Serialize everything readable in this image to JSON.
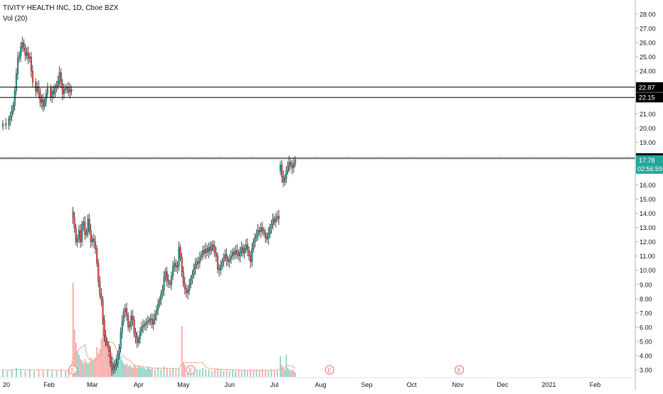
{
  "legend": {
    "title": "TIVITY HEALTH INC, 1D, Cboe BZX",
    "volume_label": "Vol (20)"
  },
  "colors": {
    "up": "#26a69a",
    "down": "#ef5350",
    "vol_up": "#8fd3c6",
    "vol_down": "#f7a9a7",
    "vol_ma": "#f4a98b",
    "level_line": "#000000",
    "last_price_line": "#26a69a",
    "earnings": "#e57373",
    "axis_text": "#131722",
    "grid": "#f0f3fa"
  },
  "chart_data": {
    "type": "candlestick",
    "symbol": "TIVITY HEALTH INC",
    "interval": "1D",
    "exchange": "Cboe BZX",
    "y_range": [
      2.5,
      29.0
    ],
    "y_ticks": [
      "3.00",
      "4.00",
      "5.00",
      "6.00",
      "7.00",
      "8.00",
      "9.00",
      "10.00",
      "11.00",
      "12.00",
      "13.00",
      "14.00",
      "15.00",
      "16.00",
      "17.00",
      "18.00",
      "19.00",
      "20.00",
      "21.00",
      "22.00",
      "23.00",
      "24.00",
      "25.00",
      "26.00",
      "27.00",
      "28.00"
    ],
    "x_ticks": [
      {
        "label": "20",
        "day": 0
      },
      {
        "label": "Feb",
        "day": 31
      },
      {
        "label": "Mar",
        "day": 60
      },
      {
        "label": "Apr",
        "day": 91
      },
      {
        "label": "May",
        "day": 121
      },
      {
        "label": "Jun",
        "day": 152
      },
      {
        "label": "Jul",
        "day": 182
      },
      {
        "label": "Aug",
        "day": 213
      },
      {
        "label": "Sep",
        "day": 244
      },
      {
        "label": "Oct",
        "day": 274
      },
      {
        "label": "Nov",
        "day": 305
      },
      {
        "label": "Dec",
        "day": 335
      },
      {
        "label": "2021",
        "day": 366
      },
      {
        "label": "Feb",
        "day": 397
      }
    ],
    "horizontal_levels": [
      {
        "label": "22.87",
        "value": 22.87
      },
      {
        "label": "22.15",
        "value": 22.15
      },
      {
        "label": "17.88",
        "value": 17.88
      }
    ],
    "last_price": {
      "label": "17.78",
      "value": 17.78,
      "countdown": "02:56:59"
    },
    "earnings_markers": [
      {
        "label": "E",
        "day": 47
      },
      {
        "label": "E",
        "day": 126
      },
      {
        "label": "E",
        "day": 219
      },
      {
        "label": "E",
        "day": 306
      }
    ],
    "anchor_points": [
      [
        0,
        20.3
      ],
      [
        2,
        20.2
      ],
      [
        4,
        20.6
      ],
      [
        5,
        20.8
      ],
      [
        6,
        21.2
      ],
      [
        7,
        21.6
      ],
      [
        8,
        22.6
      ],
      [
        9,
        23.8
      ],
      [
        10,
        24.9
      ],
      [
        11,
        25.1
      ],
      [
        12,
        25.7
      ],
      [
        13,
        26.0
      ],
      [
        14,
        25.6
      ],
      [
        15,
        25.1
      ],
      [
        16,
        25.3
      ],
      [
        17,
        24.9
      ],
      [
        18,
        25.0
      ],
      [
        19,
        24.0
      ],
      [
        20,
        23.2
      ],
      [
        22,
        22.6
      ],
      [
        23,
        22.9
      ],
      [
        24,
        22.5
      ],
      [
        25,
        21.8
      ],
      [
        26,
        22.0
      ],
      [
        27,
        21.5
      ],
      [
        28,
        21.9
      ],
      [
        29,
        22.4
      ],
      [
        30,
        22.8
      ],
      [
        32,
        22.2
      ],
      [
        33,
        22.6
      ],
      [
        34,
        22.4
      ],
      [
        35,
        22.9
      ],
      [
        36,
        23.0
      ],
      [
        37,
        23.3
      ],
      [
        38,
        23.9
      ],
      [
        39,
        23.1
      ],
      [
        40,
        22.4
      ],
      [
        41,
        22.7
      ],
      [
        42,
        22.8
      ],
      [
        43,
        22.85
      ],
      [
        44,
        22.5
      ],
      [
        45,
        22.7
      ],
      [
        46,
        22.6
      ],
      [
        47,
        13.7
      ],
      [
        48,
        13.0
      ],
      [
        49,
        12.0
      ],
      [
        50,
        12.2
      ],
      [
        51,
        12.8
      ],
      [
        52,
        12.0
      ],
      [
        53,
        13.2
      ],
      [
        54,
        13.4
      ],
      [
        55,
        12.5
      ],
      [
        56,
        12.7
      ],
      [
        57,
        13.6
      ],
      [
        58,
        12.8
      ],
      [
        59,
        12.0
      ],
      [
        60,
        12.2
      ],
      [
        61,
        12.0
      ],
      [
        62,
        11.5
      ],
      [
        63,
        10.5
      ],
      [
        64,
        9.2
      ],
      [
        65,
        8.3
      ],
      [
        66,
        7.9
      ],
      [
        67,
        6.5
      ],
      [
        68,
        5.4
      ],
      [
        69,
        5.0
      ],
      [
        70,
        4.7
      ],
      [
        71,
        4.3
      ],
      [
        72,
        3.5
      ],
      [
        73,
        3.0
      ],
      [
        74,
        3.2
      ],
      [
        75,
        3.3
      ],
      [
        76,
        3.4
      ],
      [
        77,
        4.1
      ],
      [
        78,
        4.5
      ],
      [
        79,
        5.6
      ],
      [
        80,
        6.4
      ],
      [
        81,
        7.1
      ],
      [
        82,
        7.3
      ],
      [
        83,
        6.8
      ],
      [
        84,
        6.0
      ],
      [
        85,
        6.1
      ],
      [
        86,
        6.8
      ],
      [
        87,
        6.5
      ],
      [
        88,
        5.6
      ],
      [
        89,
        5.3
      ],
      [
        90,
        4.9
      ],
      [
        91,
        5.2
      ],
      [
        92,
        5.7
      ],
      [
        93,
        6.0
      ],
      [
        94,
        6.1
      ],
      [
        95,
        6.2
      ],
      [
        96,
        6.3
      ],
      [
        97,
        6.4
      ],
      [
        98,
        6.5
      ],
      [
        99,
        6.6
      ],
      [
        100,
        6.2
      ],
      [
        101,
        6.5
      ],
      [
        102,
        6.9
      ],
      [
        103,
        7.2
      ],
      [
        104,
        7.6
      ],
      [
        105,
        7.9
      ],
      [
        106,
        8.3
      ],
      [
        107,
        8.6
      ],
      [
        108,
        9.5
      ],
      [
        109,
        9.9
      ],
      [
        110,
        9.3
      ],
      [
        111,
        9.1
      ],
      [
        112,
        9.0
      ],
      [
        113,
        9.6
      ],
      [
        114,
        10.3
      ],
      [
        115,
        10.5
      ],
      [
        116,
        10.2
      ],
      [
        117,
        10.3
      ],
      [
        118,
        11.6
      ],
      [
        119,
        10.9
      ],
      [
        120,
        9.9
      ],
      [
        121,
        9.1
      ],
      [
        122,
        8.7
      ],
      [
        123,
        8.4
      ],
      [
        124,
        8.6
      ],
      [
        125,
        9.0
      ],
      [
        126,
        9.4
      ],
      [
        127,
        9.7
      ],
      [
        128,
        10.1
      ],
      [
        129,
        10.4
      ],
      [
        130,
        10.6
      ],
      [
        131,
        10.5
      ],
      [
        132,
        10.9
      ],
      [
        133,
        11.1
      ],
      [
        134,
        11.4
      ],
      [
        135,
        11.2
      ],
      [
        136,
        11.5
      ],
      [
        137,
        11.3
      ],
      [
        138,
        11.6
      ],
      [
        139,
        11.4
      ],
      [
        140,
        11.8
      ],
      [
        141,
        11.7
      ],
      [
        142,
        11.2
      ],
      [
        143,
        11.0
      ],
      [
        144,
        10.1
      ],
      [
        145,
        10.0
      ],
      [
        146,
        10.3
      ],
      [
        147,
        10.6
      ],
      [
        148,
        10.9
      ],
      [
        149,
        11.1
      ],
      [
        150,
        10.7
      ],
      [
        151,
        10.6
      ],
      [
        152,
        10.8
      ],
      [
        153,
        11.0
      ],
      [
        154,
        11.3
      ],
      [
        155,
        11.1
      ],
      [
        156,
        11.4
      ],
      [
        157,
        11.2
      ],
      [
        158,
        11.0
      ],
      [
        159,
        11.3
      ],
      [
        160,
        11.6
      ],
      [
        161,
        11.2
      ],
      [
        162,
        11.5
      ],
      [
        163,
        11.8
      ],
      [
        164,
        11.4
      ],
      [
        165,
        11.0
      ],
      [
        166,
        10.6
      ],
      [
        167,
        11.5
      ],
      [
        168,
        12.0
      ],
      [
        169,
        12.3
      ],
      [
        170,
        12.5
      ],
      [
        171,
        12.8
      ],
      [
        172,
        12.7
      ],
      [
        173,
        13.0
      ],
      [
        174,
        12.8
      ],
      [
        175,
        12.6
      ],
      [
        176,
        12.3
      ],
      [
        177,
        12.2
      ],
      [
        178,
        12.6
      ],
      [
        179,
        13.0
      ],
      [
        180,
        13.2
      ],
      [
        181,
        13.6
      ],
      [
        182,
        13.4
      ],
      [
        183,
        13.7
      ],
      [
        184,
        13.8
      ],
      [
        185,
        13.6
      ],
      [
        186,
        17.4
      ],
      [
        187,
        16.6
      ],
      [
        188,
        16.2
      ],
      [
        189,
        16.5
      ],
      [
        190,
        17.0
      ],
      [
        191,
        17.3
      ],
      [
        192,
        17.6
      ],
      [
        193,
        17.4
      ],
      [
        194,
        17.2
      ],
      [
        195,
        17.5
      ],
      [
        196,
        17.78
      ]
    ],
    "volume_ma_note": "",
    "volume_bars": [
      [
        0,
        0.5
      ],
      [
        3,
        0.4
      ],
      [
        6,
        0.5
      ],
      [
        9,
        0.6
      ],
      [
        12,
        0.5
      ],
      [
        15,
        0.4
      ],
      [
        18,
        0.5
      ],
      [
        21,
        0.4
      ],
      [
        24,
        0.5
      ],
      [
        27,
        0.4
      ],
      [
        30,
        0.5
      ],
      [
        33,
        0.4
      ],
      [
        36,
        0.4
      ],
      [
        39,
        0.5
      ],
      [
        42,
        0.4
      ],
      [
        44,
        0.4
      ],
      [
        47,
        6.3
      ],
      [
        48,
        3.2
      ],
      [
        49,
        2.3
      ],
      [
        50,
        1.7
      ],
      [
        51,
        1.5
      ],
      [
        52,
        1.2
      ],
      [
        53,
        1.1
      ],
      [
        54,
        0.9
      ],
      [
        55,
        1.2
      ],
      [
        56,
        1.0
      ],
      [
        57,
        0.9
      ],
      [
        58,
        1.0
      ],
      [
        59,
        1.3
      ],
      [
        60,
        1.1
      ],
      [
        61,
        1.2
      ],
      [
        62,
        1.3
      ],
      [
        63,
        2.0
      ],
      [
        64,
        1.6
      ],
      [
        65,
        1.9
      ],
      [
        66,
        2.6
      ],
      [
        67,
        4.0
      ],
      [
        68,
        3.3
      ],
      [
        69,
        2.4
      ],
      [
        70,
        1.8
      ],
      [
        71,
        1.5
      ],
      [
        72,
        2.0
      ],
      [
        73,
        1.6
      ],
      [
        74,
        1.3
      ],
      [
        75,
        1.2
      ],
      [
        76,
        1.5
      ],
      [
        77,
        1.3
      ],
      [
        78,
        2.0
      ],
      [
        79,
        1.4
      ],
      [
        80,
        1.1
      ],
      [
        81,
        0.9
      ],
      [
        82,
        0.8
      ],
      [
        83,
        0.9
      ],
      [
        84,
        0.7
      ],
      [
        85,
        0.8
      ],
      [
        86,
        0.7
      ],
      [
        87,
        0.6
      ],
      [
        88,
        0.8
      ],
      [
        89,
        0.7
      ],
      [
        90,
        0.6
      ],
      [
        91,
        0.8
      ],
      [
        92,
        0.7
      ],
      [
        93,
        0.6
      ],
      [
        94,
        0.7
      ],
      [
        95,
        0.6
      ],
      [
        96,
        0.5
      ],
      [
        97,
        0.7
      ],
      [
        98,
        0.6
      ],
      [
        99,
        0.5
      ],
      [
        100,
        0.6
      ],
      [
        102,
        0.5
      ],
      [
        104,
        0.6
      ],
      [
        106,
        0.5
      ],
      [
        108,
        0.7
      ],
      [
        110,
        0.6
      ],
      [
        112,
        0.5
      ],
      [
        114,
        0.6
      ],
      [
        116,
        0.5
      ],
      [
        118,
        0.6
      ],
      [
        120,
        3.4
      ],
      [
        121,
        1.0
      ],
      [
        122,
        0.8
      ],
      [
        124,
        0.6
      ],
      [
        126,
        0.7
      ],
      [
        128,
        0.6
      ],
      [
        130,
        0.5
      ],
      [
        132,
        0.5
      ],
      [
        134,
        0.6
      ],
      [
        136,
        0.5
      ],
      [
        138,
        0.5
      ],
      [
        140,
        0.4
      ],
      [
        142,
        0.5
      ],
      [
        144,
        0.6
      ],
      [
        146,
        0.5
      ],
      [
        148,
        0.4
      ],
      [
        150,
        0.5
      ],
      [
        152,
        0.4
      ],
      [
        154,
        0.5
      ],
      [
        156,
        0.4
      ],
      [
        158,
        0.5
      ],
      [
        160,
        0.4
      ],
      [
        162,
        0.5
      ],
      [
        164,
        0.4
      ],
      [
        166,
        0.5
      ],
      [
        168,
        0.4
      ],
      [
        170,
        0.5
      ],
      [
        172,
        0.4
      ],
      [
        174,
        0.5
      ],
      [
        176,
        0.4
      ],
      [
        178,
        0.4
      ],
      [
        180,
        0.5
      ],
      [
        182,
        0.4
      ],
      [
        184,
        0.5
      ],
      [
        186,
        1.4
      ],
      [
        187,
        0.8
      ],
      [
        188,
        0.6
      ],
      [
        189,
        0.5
      ],
      [
        190,
        1.5
      ],
      [
        191,
        0.6
      ],
      [
        192,
        0.5
      ],
      [
        193,
        0.4
      ],
      [
        194,
        0.5
      ],
      [
        195,
        0.4
      ],
      [
        196,
        0.3
      ]
    ]
  }
}
